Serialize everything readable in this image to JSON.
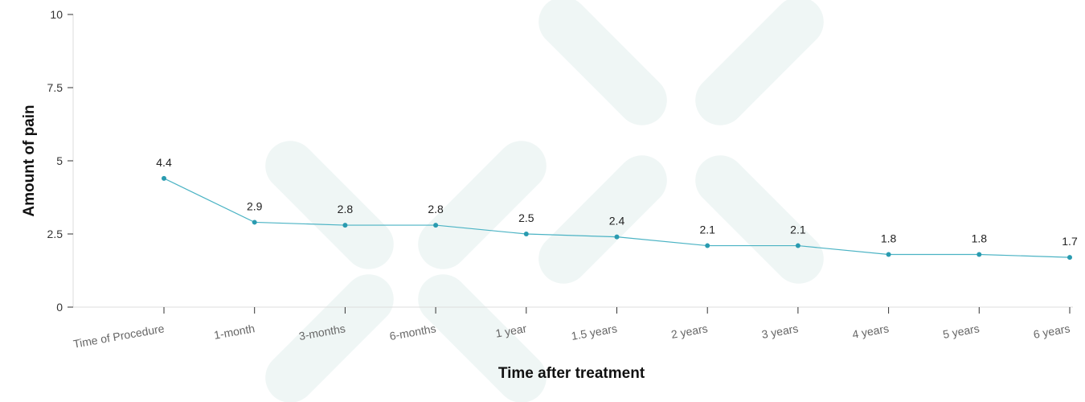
{
  "colors": {
    "line": "#4bb3c4",
    "point": "#2a9bb0",
    "axis": "#dddddd",
    "tick": "#333333",
    "watermark": "#e9f3f2"
  },
  "chart_data": {
    "type": "line",
    "xlabel": "Time after treatment",
    "ylabel": "Amount of pain",
    "ylim": [
      0,
      10
    ],
    "yticks": [
      {
        "value": 0,
        "label": "0"
      },
      {
        "value": 2.5,
        "label": "2.5"
      },
      {
        "value": 5,
        "label": "5"
      },
      {
        "value": 7.5,
        "label": "7.5"
      },
      {
        "value": 10,
        "label": "10"
      }
    ],
    "grid": false,
    "categories": [
      "Time of Procedure",
      "1-month",
      "3-months",
      "6-months",
      "1 year",
      "1.5 years",
      "2 years",
      "3 years",
      "4 years",
      "5 years",
      "6 years"
    ],
    "series": [
      {
        "values": [
          4.4,
          2.9,
          2.8,
          2.8,
          2.5,
          2.4,
          2.1,
          2.1,
          1.8,
          1.8,
          1.7
        ],
        "labels": [
          "4.4",
          "2.9",
          "2.8",
          "2.8",
          "2.5",
          "2.4",
          "2.1",
          "2.1",
          "1.8",
          "1.8",
          "1.7"
        ]
      }
    ]
  }
}
